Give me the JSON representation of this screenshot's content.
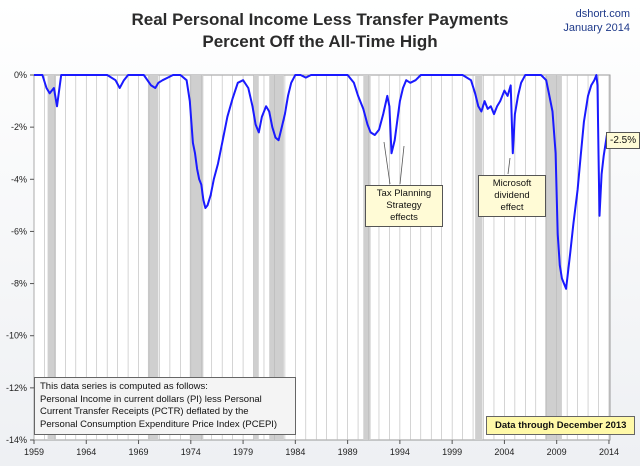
{
  "header": {
    "title_line1": "Real Personal Income Less Transfer Payments",
    "title_line2": "Percent Off the All-Time High",
    "source": "dshort.com",
    "date": "January 2014"
  },
  "chart_data": {
    "type": "line",
    "title": "Real Personal Income Less Transfer Payments Percent Off the All-Time High",
    "xlim": [
      1959,
      2014.1
    ],
    "ylim": [
      -14,
      0
    ],
    "yticks": [
      0,
      -2,
      -4,
      -6,
      -8,
      -10,
      -12,
      -14
    ],
    "ytick_labels": [
      "0%",
      "-2%",
      "-4%",
      "-6%",
      "-8%",
      "-10%",
      "-12%",
      "-14%"
    ],
    "xticks": [
      1959,
      1964,
      1969,
      1974,
      1979,
      1984,
      1989,
      1994,
      1999,
      2004,
      2009,
      2014
    ],
    "xtick_labels": [
      "1959",
      "1964",
      "1969",
      "1974",
      "1979",
      "1984",
      "1989",
      "1994",
      "1999",
      "2004",
      "2009",
      "2014"
    ],
    "grid": "vertical",
    "recessions": [
      [
        1960.3,
        1961.1
      ],
      [
        1969.9,
        1970.9
      ],
      [
        1973.9,
        1975.2
      ],
      [
        1980.0,
        1980.5
      ],
      [
        1981.5,
        1982.9
      ],
      [
        1990.5,
        1991.2
      ],
      [
        2001.2,
        2001.9
      ],
      [
        2007.9,
        2009.5
      ]
    ],
    "series": [
      {
        "color": "#1a1aff",
        "x": [
          1959.0,
          1959.8,
          1960.2,
          1960.5,
          1960.9,
          1961.2,
          1961.4,
          1961.6,
          1962.0,
          1964.0,
          1966.0,
          1966.8,
          1967.2,
          1967.6,
          1968.0,
          1969.5,
          1970.2,
          1970.6,
          1970.9,
          1971.3,
          1971.8,
          1972.3,
          1973.0,
          1973.6,
          1973.9,
          1974.2,
          1974.4,
          1974.6,
          1974.8,
          1975.0,
          1975.2,
          1975.4,
          1975.6,
          1975.9,
          1976.2,
          1976.6,
          1977.0,
          1977.5,
          1978.0,
          1978.5,
          1979.0,
          1979.5,
          1979.9,
          1980.2,
          1980.5,
          1980.8,
          1981.2,
          1981.5,
          1981.8,
          1982.1,
          1982.4,
          1982.7,
          1983.0,
          1983.3,
          1983.6,
          1984.0,
          1984.5,
          1985.0,
          1985.5,
          1986.0,
          1987.0,
          1988.0,
          1989.0,
          1989.6,
          1990.0,
          1990.5,
          1990.9,
          1991.2,
          1991.6,
          1992.0,
          1992.4,
          1992.8,
          1993.0,
          1993.2,
          1993.5,
          1993.8,
          1994.0,
          1994.3,
          1994.6,
          1995.0,
          1995.5,
          1996.0,
          1996.5,
          1997.0,
          1998.0,
          1999.0,
          2000.0,
          2000.8,
          2001.2,
          2001.5,
          2001.8,
          2002.1,
          2002.4,
          2002.7,
          2003.0,
          2003.3,
          2003.6,
          2004.0,
          2004.3,
          2004.6,
          2004.8,
          2005.0,
          2005.3,
          2005.6,
          2006.0,
          2006.5,
          2007.0,
          2007.5,
          2008.0,
          2008.3,
          2008.6,
          2008.9,
          2009.1,
          2009.3,
          2009.5,
          2009.7,
          2009.9,
          2010.1,
          2010.3,
          2010.6,
          2011.0,
          2011.3,
          2011.6,
          2012.0,
          2012.3,
          2012.6,
          2012.8,
          2012.9,
          2013.0,
          2013.1,
          2013.3,
          2013.5,
          2013.8,
          2013.95
        ],
        "y": [
          0,
          0,
          -0.5,
          -0.7,
          -0.5,
          -1.2,
          -0.6,
          0,
          0,
          0,
          0,
          -0.2,
          -0.5,
          -0.2,
          0,
          0,
          -0.4,
          -0.5,
          -0.3,
          -0.2,
          -0.1,
          0,
          0,
          -0.2,
          -1.0,
          -2.6,
          -3.0,
          -3.6,
          -4.0,
          -4.2,
          -4.8,
          -5.1,
          -5.0,
          -4.6,
          -4.0,
          -3.4,
          -2.6,
          -1.6,
          -0.9,
          -0.3,
          -0.2,
          -0.5,
          -1.2,
          -1.9,
          -2.2,
          -1.6,
          -1.2,
          -1.4,
          -2.0,
          -2.4,
          -2.5,
          -2.0,
          -1.5,
          -0.8,
          -0.3,
          0,
          0,
          -0.1,
          0,
          0,
          0,
          0,
          0,
          -0.3,
          -0.8,
          -1.3,
          -1.9,
          -2.2,
          -2.3,
          -2.1,
          -1.5,
          -0.8,
          -1.2,
          -3.0,
          -2.5,
          -1.6,
          -1.0,
          -0.5,
          -0.2,
          -0.3,
          -0.2,
          0,
          0,
          0,
          0,
          0,
          0,
          -0.2,
          -0.7,
          -1.2,
          -1.4,
          -1.0,
          -1.3,
          -1.2,
          -1.5,
          -1.2,
          -1.0,
          -0.6,
          -0.8,
          -0.4,
          -3.0,
          -1.5,
          -0.8,
          -0.3,
          0,
          0,
          0,
          0,
          -0.2,
          -0.8,
          -1.4,
          -3.0,
          -6.1,
          -7.3,
          -7.8,
          -8.0,
          -8.2,
          -7.5,
          -6.8,
          -5.7,
          -4.4,
          -3.1,
          -1.8,
          -0.8,
          -0.4,
          -0.2,
          0,
          -0.4,
          -3.0,
          -5.4,
          -3.8,
          -3.1,
          -2.3,
          -2.5
        ]
      }
    ],
    "annotations": [
      {
        "text_lines": [
          "Tax Planning",
          "Strategy",
          "effects"
        ]
      },
      {
        "text_lines": [
          "Microsoft",
          "dividend",
          "effect"
        ]
      }
    ],
    "last_value_label": "-2.5%",
    "note_lines": [
      "This data series is computed as follows:",
      "Personal Income in current dollars  (PI) less Personal",
      "Current Transfer Receipts (PCTR) deflated by the",
      "Personal Consumption Expenditure Price Index (PCEPI)"
    ],
    "data_through": "Data through December 2013"
  }
}
